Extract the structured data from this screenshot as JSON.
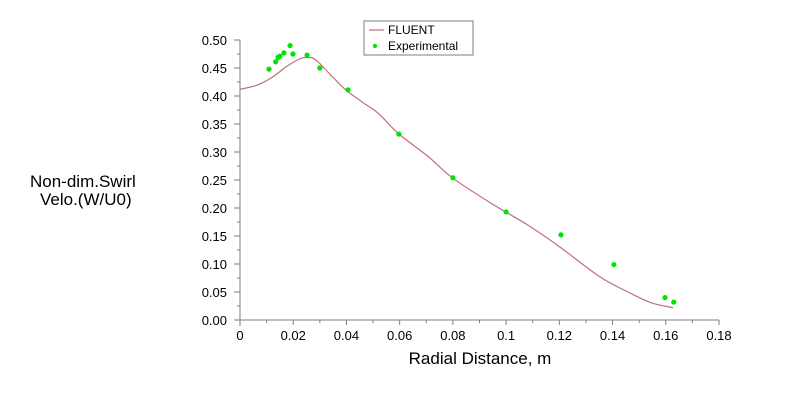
{
  "chart_data": {
    "type": "line",
    "title": "",
    "xlabel": "Radial Distance, m",
    "ylabel_lines": [
      "Non-dim.Swirl",
      "Velo.(W/U0)"
    ],
    "ylabel": "Non-dim.Swirl Velo.(W/U0)",
    "xlim": [
      0,
      0.18
    ],
    "ylim": [
      0,
      0.5
    ],
    "x_ticks": [
      0,
      0.02,
      0.04,
      0.06,
      0.08,
      0.1,
      0.12,
      0.14,
      0.16,
      0.18
    ],
    "x_tick_labels": [
      "0",
      "0.02",
      "0.04",
      "0.06",
      "0.08",
      "0.1",
      "0.12",
      "0.14",
      "0.16",
      "0.18"
    ],
    "x_minor_step": 0.01,
    "y_ticks": [
      0,
      0.05,
      0.1,
      0.15,
      0.2,
      0.25,
      0.3,
      0.35,
      0.4,
      0.45,
      0.5
    ],
    "y_tick_labels": [
      "0.00",
      "0.05",
      "0.10",
      "0.15",
      "0.20",
      "0.25",
      "0.30",
      "0.35",
      "0.40",
      "0.45",
      "0.50"
    ],
    "y_minor_step": 0.025,
    "grid": false,
    "legend_position": "top-center",
    "series": [
      {
        "name": "FLUENT",
        "kind": "line",
        "color": "#c0707a",
        "x": [
          0.0,
          0.004,
          0.0073,
          0.0123,
          0.0173,
          0.0223,
          0.0254,
          0.0286,
          0.0348,
          0.04,
          0.046,
          0.052,
          0.0595,
          0.0707,
          0.0798,
          0.0945,
          0.108,
          0.12,
          0.1353,
          0.1466,
          0.155,
          0.1627
        ],
        "y": [
          0.412,
          0.416,
          0.421,
          0.434,
          0.452,
          0.466,
          0.469,
          0.464,
          0.434,
          0.41,
          0.389,
          0.369,
          0.333,
          0.292,
          0.254,
          0.208,
          0.17,
          0.131,
          0.077,
          0.048,
          0.03,
          0.022
        ]
      },
      {
        "name": "Experimental",
        "kind": "scatter",
        "color": "#00e400",
        "x": [
          0.0109,
          0.0134,
          0.0143,
          0.015,
          0.0165,
          0.0188,
          0.0199,
          0.0252,
          0.03,
          0.0406,
          0.0597,
          0.08,
          0.1,
          0.1206,
          0.1405,
          0.1597,
          0.163
        ],
        "y": [
          0.448,
          0.461,
          0.469,
          0.471,
          0.477,
          0.49,
          0.475,
          0.473,
          0.45,
          0.411,
          0.332,
          0.254,
          0.193,
          0.152,
          0.099,
          0.04,
          0.032
        ]
      }
    ]
  },
  "legend": {
    "items": [
      {
        "label": "FLUENT",
        "marker": "line",
        "color": "#c0707a"
      },
      {
        "label": "Experimental",
        "marker": "dot",
        "color": "#00e400"
      }
    ]
  },
  "colors": {
    "axis": "#7f7f7f",
    "legend_border": "#7f7f7f",
    "background": "#ffffff"
  }
}
